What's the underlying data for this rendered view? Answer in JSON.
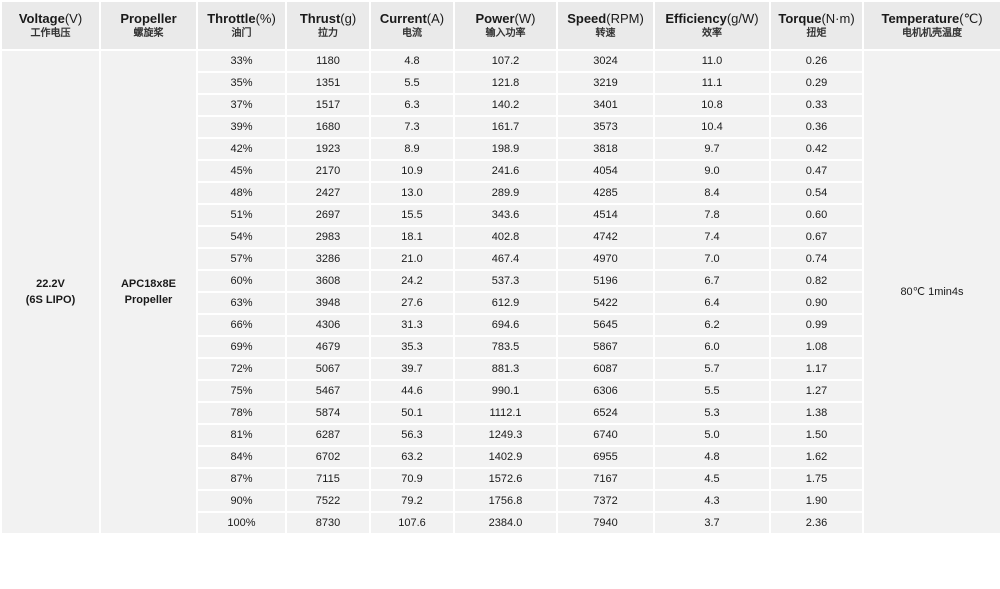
{
  "headers": [
    {
      "en": "Voltage",
      "unit": "(V)",
      "cn": "工作电压"
    },
    {
      "en": "Propeller",
      "unit": "",
      "cn": "螺旋桨"
    },
    {
      "en": "Throttle",
      "unit": "(%)",
      "cn": "油门"
    },
    {
      "en": "Thrust",
      "unit": "(g)",
      "cn": "拉力"
    },
    {
      "en": "Current",
      "unit": "(A)",
      "cn": "电流"
    },
    {
      "en": "Power",
      "unit": "(W)",
      "cn": "输入功率"
    },
    {
      "en": "Speed",
      "unit": "(RPM)",
      "cn": "转速"
    },
    {
      "en": "Efficiency",
      "unit": "(g/W)",
      "cn": "效率"
    },
    {
      "en": "Torque",
      "unit": "(N·m)",
      "cn": "扭矩"
    },
    {
      "en": "Temperature",
      "unit": "(℃)",
      "cn": "电机机壳温度"
    }
  ],
  "voltage": {
    "line1": "22.2V",
    "line2": "(6S LIPO)"
  },
  "propeller": {
    "line1": "APC18x8E",
    "line2": "Propeller"
  },
  "temperature": "80℃  1min4s",
  "rows": [
    [
      "33%",
      "1180",
      "4.8",
      "107.2",
      "3024",
      "11.0",
      "0.26"
    ],
    [
      "35%",
      "1351",
      "5.5",
      "121.8",
      "3219",
      "11.1",
      "0.29"
    ],
    [
      "37%",
      "1517",
      "6.3",
      "140.2",
      "3401",
      "10.8",
      "0.33"
    ],
    [
      "39%",
      "1680",
      "7.3",
      "161.7",
      "3573",
      "10.4",
      "0.36"
    ],
    [
      "42%",
      "1923",
      "8.9",
      "198.9",
      "3818",
      "9.7",
      "0.42"
    ],
    [
      "45%",
      "2170",
      "10.9",
      "241.6",
      "4054",
      "9.0",
      "0.47"
    ],
    [
      "48%",
      "2427",
      "13.0",
      "289.9",
      "4285",
      "8.4",
      "0.54"
    ],
    [
      "51%",
      "2697",
      "15.5",
      "343.6",
      "4514",
      "7.8",
      "0.60"
    ],
    [
      "54%",
      "2983",
      "18.1",
      "402.8",
      "4742",
      "7.4",
      "0.67"
    ],
    [
      "57%",
      "3286",
      "21.0",
      "467.4",
      "4970",
      "7.0",
      "0.74"
    ],
    [
      "60%",
      "3608",
      "24.2",
      "537.3",
      "5196",
      "6.7",
      "0.82"
    ],
    [
      "63%",
      "3948",
      "27.6",
      "612.9",
      "5422",
      "6.4",
      "0.90"
    ],
    [
      "66%",
      "4306",
      "31.3",
      "694.6",
      "5645",
      "6.2",
      "0.99"
    ],
    [
      "69%",
      "4679",
      "35.3",
      "783.5",
      "5867",
      "6.0",
      "1.08"
    ],
    [
      "72%",
      "5067",
      "39.7",
      "881.3",
      "6087",
      "5.7",
      "1.17"
    ],
    [
      "75%",
      "5467",
      "44.6",
      "990.1",
      "6306",
      "5.5",
      "1.27"
    ],
    [
      "78%",
      "5874",
      "50.1",
      "1112.1",
      "6524",
      "5.3",
      "1.38"
    ],
    [
      "81%",
      "6287",
      "56.3",
      "1249.3",
      "6740",
      "5.0",
      "1.50"
    ],
    [
      "84%",
      "6702",
      "63.2",
      "1402.9",
      "6955",
      "4.8",
      "1.62"
    ],
    [
      "87%",
      "7115",
      "70.9",
      "1572.6",
      "7167",
      "4.5",
      "1.75"
    ],
    [
      "90%",
      "7522",
      "79.2",
      "1756.8",
      "7372",
      "4.3",
      "1.90"
    ],
    [
      "100%",
      "8730",
      "107.6",
      "2384.0",
      "7940",
      "3.7",
      "2.36"
    ]
  ]
}
